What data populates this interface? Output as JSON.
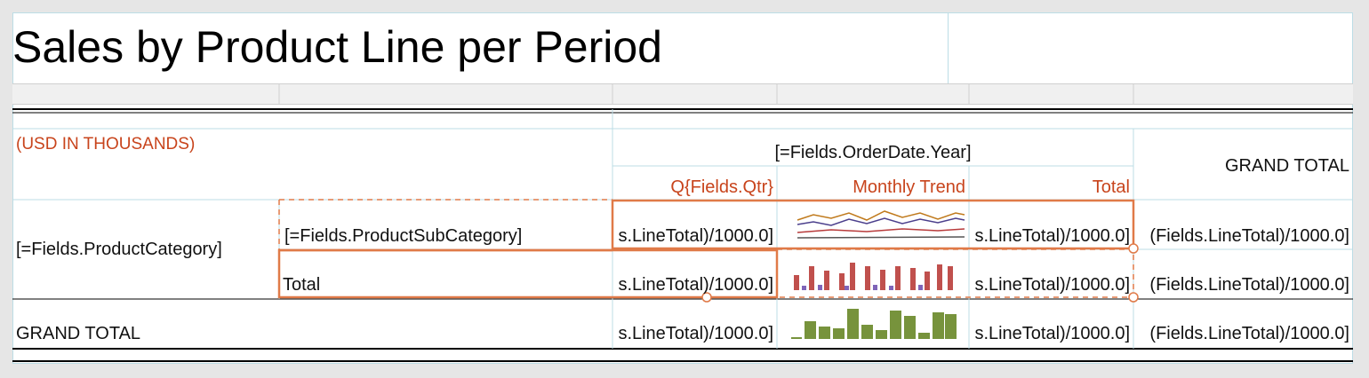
{
  "header": {
    "title": "Sales by Product Line per Period"
  },
  "table": {
    "units": "(USD IN THOUSANDS)",
    "column_group": "[=Fields.OrderDate.Year]",
    "grand_total_header": "GRAND TOTAL",
    "column_headers": [
      "Q{Fields.Qtr}",
      "Monthly Trend",
      "Total"
    ],
    "category": "[=Fields.ProductCategory]",
    "rows": [
      {
        "label": "[=Fields.ProductSubCategory]",
        "cells": [
          "s.LineTotal)/1000.0]",
          "s.LineTotal)/1000.0]",
          "(Fields.LineTotal)/1000.0]"
        ]
      },
      {
        "label": "Total",
        "cells": [
          "s.LineTotal)/1000.0]",
          "s.LineTotal)/1000.0]",
          "(Fields.LineTotal)/1000.0]"
        ]
      },
      {
        "label": "GRAND TOTAL",
        "cells": [
          "s.LineTotal)/1000.0]",
          "s.LineTotal)/1000.0]",
          "(Fields.LineTotal)/1000.0]"
        ]
      }
    ]
  }
}
